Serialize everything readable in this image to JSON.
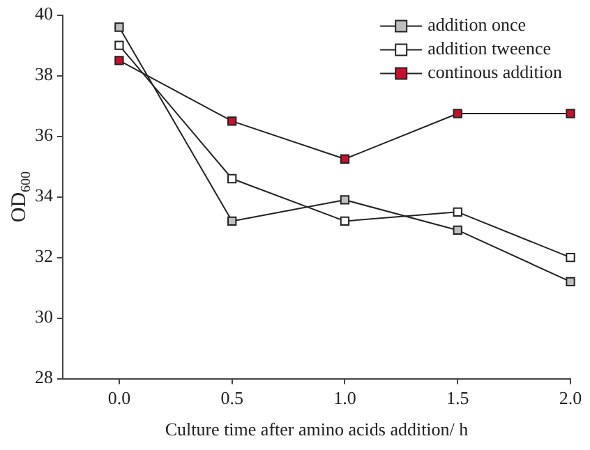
{
  "chart_data": {
    "type": "line",
    "xlabel": "Culture time after amino acids addition/ h",
    "ylabel": "OD$_{600}$",
    "x": [
      0.0,
      0.5,
      1.0,
      1.5,
      2.0
    ],
    "xlim": [
      -0.25,
      2.0
    ],
    "xticks": [
      {
        "value": 0,
        "label": "0.0"
      },
      {
        "value": 0.5,
        "label": "0.5"
      },
      {
        "value": 1,
        "label": "1.0"
      },
      {
        "value": 1.5,
        "label": "1.5"
      },
      {
        "value": 2,
        "label": "2.0"
      }
    ],
    "ylim": [
      28,
      40
    ],
    "yticks": [
      28,
      30,
      32,
      34,
      36,
      38,
      40
    ],
    "grid": false,
    "legend": "top right",
    "marker": "square",
    "series": [
      {
        "name": "addition once",
        "color": "#bfbfbf",
        "values": [
          39.6,
          33.2,
          33.9,
          32.9,
          31.2
        ]
      },
      {
        "name": "addition tweence",
        "color": "#ffffff",
        "values": [
          39.0,
          34.6,
          33.2,
          33.5,
          32.0
        ]
      },
      {
        "name": "continous addition",
        "color": "#c8102e",
        "values": [
          38.5,
          36.5,
          35.25,
          36.75,
          36.75
        ]
      }
    ]
  }
}
